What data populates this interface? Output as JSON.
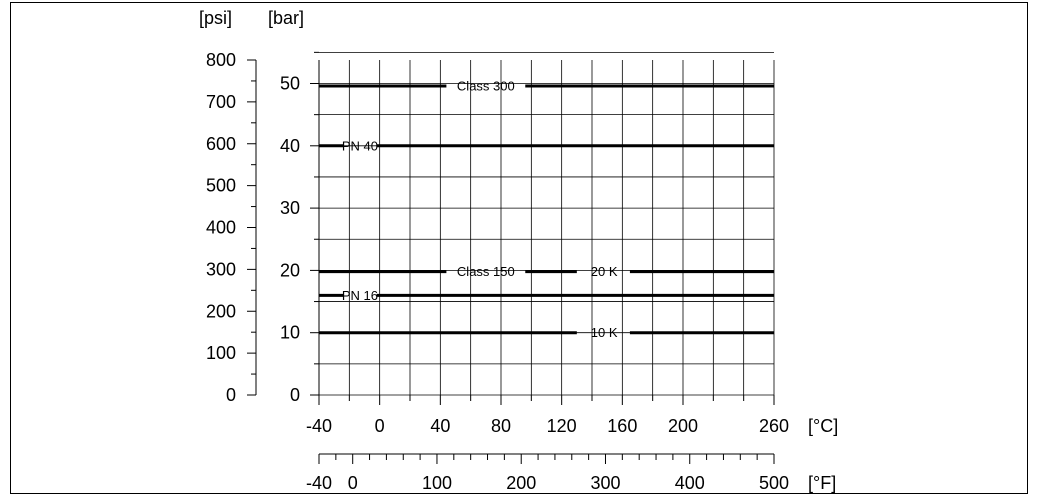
{
  "chart_data": {
    "type": "line",
    "title": "",
    "x_axes": {
      "primary": {
        "unit": "[°C]",
        "ticks": [
          -40,
          0,
          40,
          80,
          120,
          160,
          200,
          260
        ],
        "range": [
          -40,
          260
        ]
      },
      "secondary": {
        "unit": "[°F]",
        "ticks": [
          -40,
          0,
          100,
          200,
          300,
          400,
          500
        ],
        "range": [
          -40,
          500
        ]
      }
    },
    "y_axes": {
      "left": {
        "unit": "[psi]",
        "ticks": [
          0,
          100,
          200,
          300,
          400,
          500,
          600,
          700,
          800
        ],
        "range": [
          0,
          800
        ]
      },
      "right": {
        "unit": "[bar]",
        "ticks": [
          0,
          10,
          20,
          30,
          40,
          50
        ],
        "range": [
          0,
          55
        ]
      }
    },
    "grid": true,
    "series": [
      {
        "name": "Class 300",
        "x": [
          -40,
          260
        ],
        "y": [
          49.6,
          49.6
        ]
      },
      {
        "name": "PN 40",
        "x": [
          -40,
          260
        ],
        "y": [
          40,
          40
        ]
      },
      {
        "name": "Class 150",
        "x": [
          -40,
          260
        ],
        "y": [
          19.8,
          19.8
        ]
      },
      {
        "name": "20 K",
        "x": [
          -40,
          260
        ],
        "y": [
          20,
          20
        ]
      },
      {
        "name": "PN 16",
        "x": [
          -40,
          260
        ],
        "y": [
          16,
          16
        ]
      },
      {
        "name": "10 K",
        "x": [
          -40,
          260
        ],
        "y": [
          10,
          10
        ]
      }
    ]
  }
}
